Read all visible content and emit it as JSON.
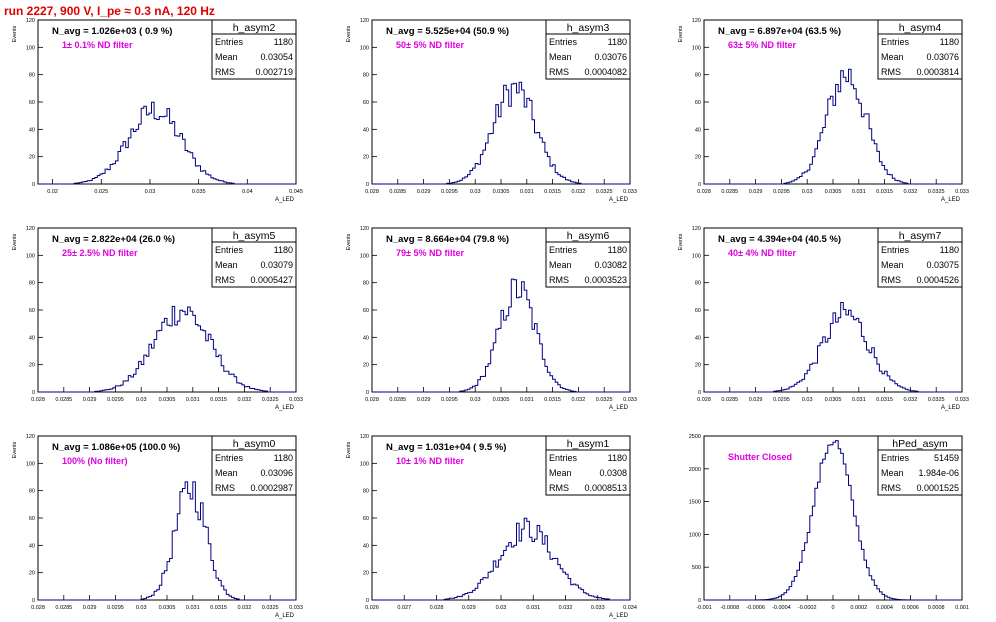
{
  "run_title": "run 2227,   900 V, I_pe ≈ 0.3 nA, 120 Hz",
  "colors": {
    "histogram": "#000080",
    "annotation": "#e000e0",
    "title_text": "#e00000",
    "axis": "#000000"
  },
  "chart_data": [
    {
      "type": "histogram",
      "name": "h_asym2",
      "avg_label": "N_avg = 1.026e+03 ( 0.9 %)",
      "filter_label": "1± 0.1% ND filter",
      "stats": {
        "Entries": "1180",
        "Mean": "0.03054",
        "RMS": "0.002719"
      },
      "ylabel": "Events",
      "xlabel": "A_LED",
      "xlim": [
        0.0185,
        0.045
      ],
      "ylim": [
        0,
        120
      ],
      "xticks": [
        "0.02",
        "0.025",
        "0.03",
        "0.035",
        "0.04",
        "0.045"
      ],
      "yticks": [
        "0",
        "20",
        "40",
        "60",
        "80",
        "100",
        "120"
      ],
      "peak": {
        "mean": 0.0305,
        "sigma": 0.0027,
        "max": 54
      }
    },
    {
      "type": "histogram",
      "name": "h_asym3",
      "avg_label": "N_avg = 5.525e+04 (50.9 %)",
      "filter_label": "50± 5% ND filter",
      "stats": {
        "Entries": "1180",
        "Mean": "0.03076",
        "RMS": "0.0004082"
      },
      "ylabel": "Events",
      "xlabel": "A_LED",
      "xlim": [
        0.028,
        0.033
      ],
      "ylim": [
        0,
        120
      ],
      "xticks": [
        "0.028",
        "0.0285",
        "0.029",
        "0.0295",
        "0.03",
        "0.0305",
        "0.031",
        "0.0315",
        "0.032",
        "0.0325",
        "0.033"
      ],
      "yticks": [
        "0",
        "20",
        "40",
        "60",
        "80",
        "100",
        "120"
      ],
      "peak": {
        "mean": 0.03076,
        "sigma": 0.00041,
        "max": 70
      }
    },
    {
      "type": "histogram",
      "name": "h_asym4",
      "avg_label": "N_avg = 6.897e+04 (63.5 %)",
      "filter_label": "63± 5% ND filter",
      "stats": {
        "Entries": "1180",
        "Mean": "0.03076",
        "RMS": "0.0003814"
      },
      "ylabel": "Events",
      "xlabel": "A_LED",
      "xlim": [
        0.028,
        0.033
      ],
      "ylim": [
        0,
        120
      ],
      "xticks": [
        "0.028",
        "0.0285",
        "0.029",
        "0.0295",
        "0.03",
        "0.0305",
        "0.031",
        "0.0315",
        "0.032",
        "0.0325",
        "0.033"
      ],
      "yticks": [
        "0",
        "20",
        "40",
        "60",
        "80",
        "100",
        "120"
      ],
      "peak": {
        "mean": 0.03076,
        "sigma": 0.00038,
        "max": 80
      }
    },
    {
      "type": "histogram",
      "name": "h_asym5",
      "avg_label": "N_avg = 2.822e+04 (26.0 %)",
      "filter_label": "25± 2.5% ND filter",
      "stats": {
        "Entries": "1180",
        "Mean": "0.03079",
        "RMS": "0.0005427"
      },
      "ylabel": "Events",
      "xlabel": "A_LED",
      "xlim": [
        0.028,
        0.033
      ],
      "ylim": [
        0,
        120
      ],
      "xticks": [
        "0.028",
        "0.0285",
        "0.029",
        "0.0295",
        "0.03",
        "0.0305",
        "0.031",
        "0.0315",
        "0.032",
        "0.0325",
        "0.033"
      ],
      "yticks": [
        "0",
        "20",
        "40",
        "60",
        "80",
        "100",
        "120"
      ],
      "peak": {
        "mean": 0.03079,
        "sigma": 0.00054,
        "max": 60
      }
    },
    {
      "type": "histogram",
      "name": "h_asym6",
      "avg_label": "N_avg = 8.664e+04 (79.8 %)",
      "filter_label": "79± 5% ND filter",
      "stats": {
        "Entries": "1180",
        "Mean": "0.03082",
        "RMS": "0.0003523"
      },
      "ylabel": "Events",
      "xlabel": "A_LED",
      "xlim": [
        0.028,
        0.033
      ],
      "ylim": [
        0,
        120
      ],
      "xticks": [
        "0.028",
        "0.0285",
        "0.029",
        "0.0295",
        "0.03",
        "0.0305",
        "0.031",
        "0.0315",
        "0.032",
        "0.0325",
        "0.033"
      ],
      "yticks": [
        "0",
        "20",
        "40",
        "60",
        "80",
        "100",
        "120"
      ],
      "peak": {
        "mean": 0.03082,
        "sigma": 0.00035,
        "max": 75
      }
    },
    {
      "type": "histogram",
      "name": "h_asym7",
      "avg_label": "N_avg = 4.394e+04 (40.5 %)",
      "filter_label": "40± 4% ND filter",
      "stats": {
        "Entries": "1180",
        "Mean": "0.03075",
        "RMS": "0.0004526"
      },
      "ylabel": "Events",
      "xlabel": "A_LED",
      "xlim": [
        0.028,
        0.033
      ],
      "ylim": [
        0,
        120
      ],
      "xticks": [
        "0.028",
        "0.0285",
        "0.029",
        "0.0295",
        "0.03",
        "0.0305",
        "0.031",
        "0.0315",
        "0.032",
        "0.0325",
        "0.033"
      ],
      "yticks": [
        "0",
        "20",
        "40",
        "60",
        "80",
        "100",
        "120"
      ],
      "peak": {
        "mean": 0.03075,
        "sigma": 0.00045,
        "max": 57
      }
    },
    {
      "type": "histogram",
      "name": "h_asym0",
      "avg_label": "N_avg = 1.086e+05 (100.0 %)",
      "filter_label": "100% (No filter)",
      "stats": {
        "Entries": "1180",
        "Mean": "0.03096",
        "RMS": "0.0002987"
      },
      "ylabel": "Events",
      "xlabel": "A_LED",
      "xlim": [
        0.028,
        0.033
      ],
      "ylim": [
        0,
        120
      ],
      "xticks": [
        "0.028",
        "0.0285",
        "0.029",
        "0.0295",
        "0.03",
        "0.0305",
        "0.031",
        "0.0315",
        "0.032",
        "0.0325",
        "0.033"
      ],
      "yticks": [
        "0",
        "20",
        "40",
        "60",
        "80",
        "100",
        "120"
      ],
      "peak": {
        "mean": 0.03096,
        "sigma": 0.0003,
        "max": 82
      }
    },
    {
      "type": "histogram",
      "name": "h_asym1",
      "avg_label": "N_avg = 1.031e+04 ( 9.5 %)",
      "filter_label": "10± 1% ND filter",
      "stats": {
        "Entries": "1180",
        "Mean": "0.0308",
        "RMS": "0.0008513"
      },
      "ylabel": "Events",
      "xlabel": "A_LED",
      "xlim": [
        0.026,
        0.034
      ],
      "ylim": [
        0,
        120
      ],
      "xticks": [
        "0.026",
        "0.027",
        "0.028",
        "0.029",
        "0.03",
        "0.031",
        "0.032",
        "0.033",
        "0.034"
      ],
      "yticks": [
        "0",
        "20",
        "40",
        "60",
        "80",
        "100",
        "120"
      ],
      "peak": {
        "mean": 0.0308,
        "sigma": 0.00085,
        "max": 52
      }
    },
    {
      "type": "histogram",
      "name": "hPed_asym",
      "avg_label": "",
      "filter_label": "Shutter Closed",
      "stats": {
        "Entries": "51459",
        "Mean": "1.984e-06",
        "RMS": "0.0001525"
      },
      "ylabel": "",
      "xlabel": "",
      "xlim": [
        -0.001,
        0.001
      ],
      "ylim": [
        0,
        2500
      ],
      "xticks": [
        "-0.001",
        "-0.0008",
        "-0.0006",
        "-0.0004",
        "-0.0002",
        "0",
        "0.0002",
        "0.0004",
        "0.0006",
        "0.0008",
        "0.001"
      ],
      "yticks": [
        "0",
        "500",
        "1000",
        "1500",
        "2000",
        "2500"
      ],
      "peak": {
        "mean": 2e-06,
        "sigma": 0.00015,
        "max": 2430
      }
    }
  ]
}
